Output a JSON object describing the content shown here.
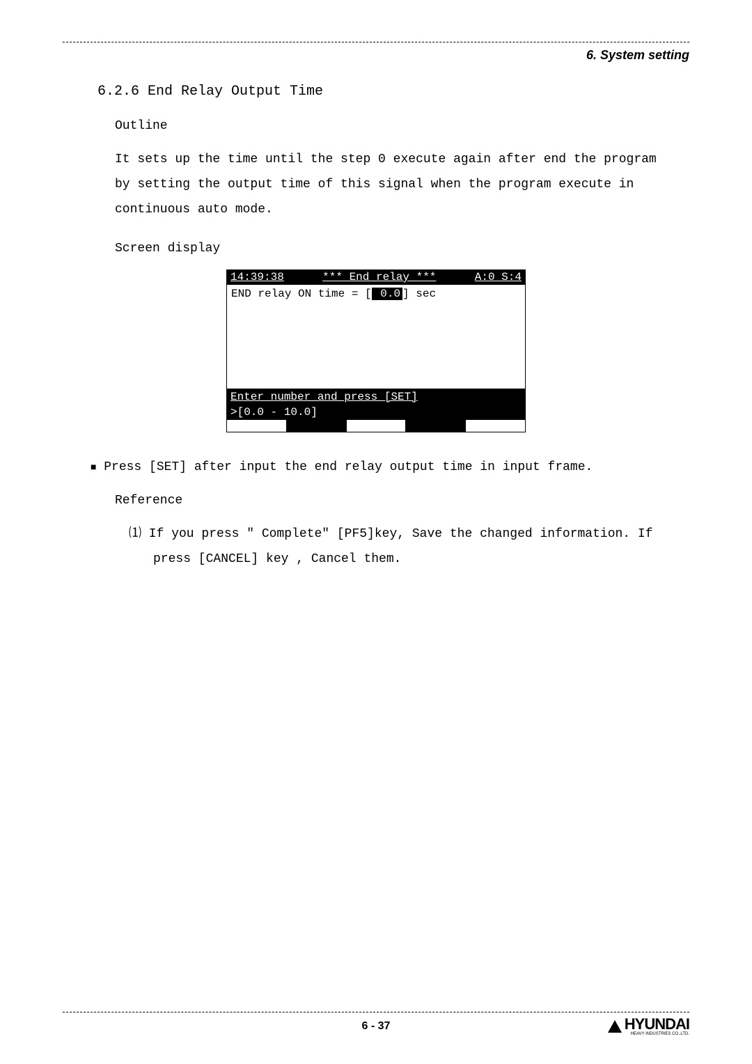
{
  "header": {
    "title": "6. System setting"
  },
  "section": {
    "number_title": "6.2.6 End Relay Output Time"
  },
  "outline": {
    "label": "Outline",
    "text": "It sets up the time until the step 0 execute again after end the program by setting the output time of this signal when the program execute in continuous auto mode."
  },
  "screen_display": {
    "label": "Screen display",
    "top_time": "14:39:38",
    "top_center": "*** End relay ***",
    "top_right": "A:0 S:4",
    "body_line": "END relay ON time     = [",
    "body_value": " 0.0",
    "body_suffix": "] sec",
    "footer1": "Enter number and press [SET]",
    "footer2": ">[0.0 - 10.0]",
    "colors": {
      "inverted_bg": "#000000",
      "inverted_fg": "#ffffff",
      "normal_bg": "#ffffff",
      "normal_fg": "#000000"
    }
  },
  "instruction": {
    "text": "Press [SET] after input the end relay output time in input frame."
  },
  "reference": {
    "label": "Reference",
    "item1": "⑴ If you press \" Complete\" [PF5]key, Save the changed information. If press [CANCEL] key , Cancel them."
  },
  "footer": {
    "page": "6 - 37",
    "logo_main": "HYUNDAI",
    "logo_sub": "HEAVY INDUSTRIES CO.,LTD."
  }
}
